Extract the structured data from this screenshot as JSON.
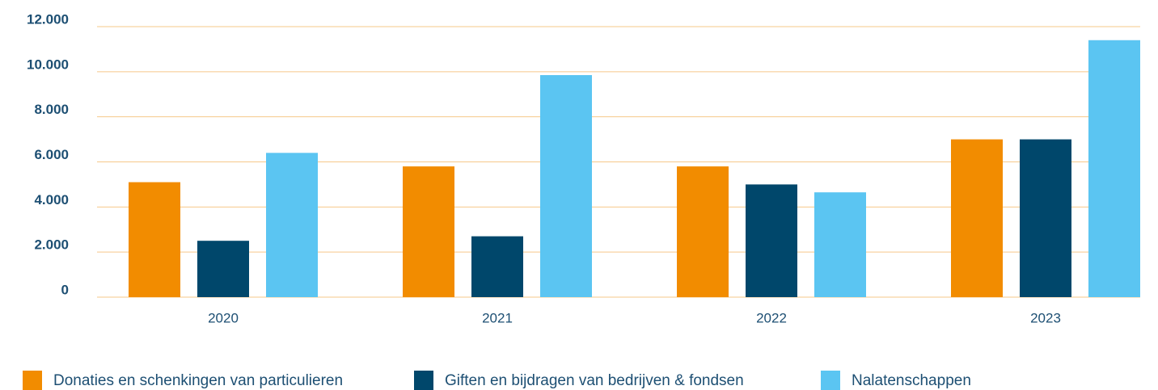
{
  "chart_data": {
    "type": "bar",
    "categories": [
      "2020",
      "2021",
      "2022",
      "2023"
    ],
    "series": [
      {
        "name": "Donaties en schenkingen van particulieren",
        "color": "#f28c00",
        "values": [
          5100,
          5800,
          5800,
          7000
        ]
      },
      {
        "name": "Giften en bijdragen van bedrijven & fondsen",
        "color": "#00476b",
        "values": [
          2500,
          2700,
          5000,
          7000
        ]
      },
      {
        "name": "Nalatenschappen",
        "color": "#5bc5f2",
        "values": [
          6400,
          9850,
          4650,
          11400
        ]
      }
    ],
    "ylim": [
      0,
      12000
    ],
    "yticks": [
      0,
      {
        "value": 2000,
        "label": "2.000"
      },
      {
        "value": 4000,
        "label": "4.000"
      },
      {
        "value": 6000,
        "label": "6.000"
      },
      {
        "value": 8000,
        "label": "8.000"
      },
      {
        "value": 10000,
        "label": "10.000"
      },
      {
        "value": 12000,
        "label": "12.000"
      }
    ],
    "grid": true
  }
}
